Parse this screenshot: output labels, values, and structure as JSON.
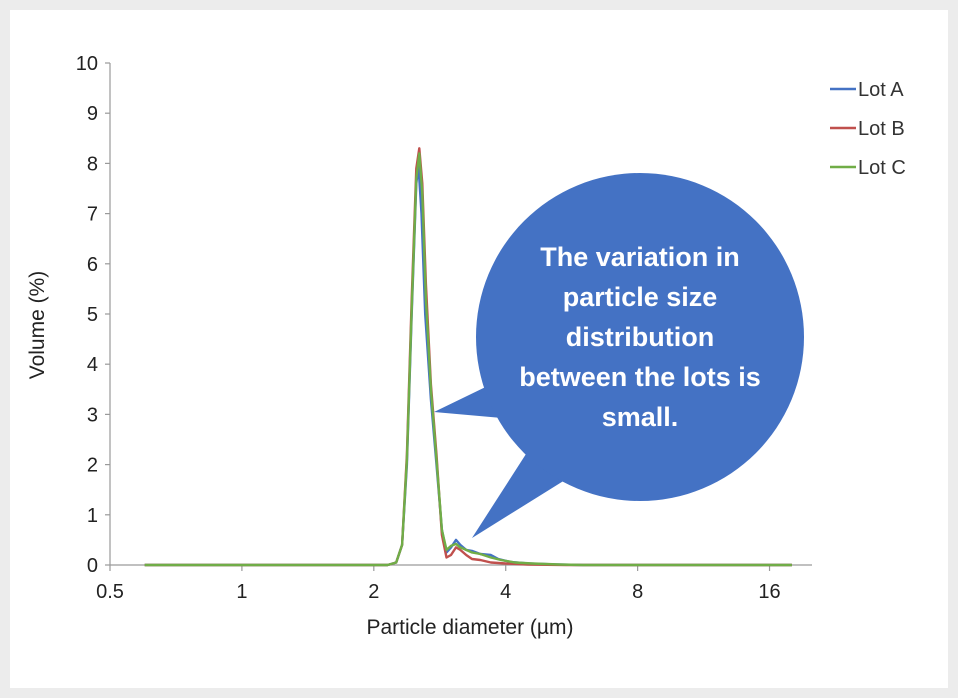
{
  "chart_data": {
    "type": "line",
    "xlabel": "Particle diameter (µm)",
    "ylabel": "Volume (%)",
    "x_scale": "log2",
    "xlim": [
      0.5,
      20
    ],
    "ylim": [
      0,
      10
    ],
    "x_ticks": [
      "0.5",
      "1",
      "2",
      "4",
      "8",
      "16"
    ],
    "y_ticks": [
      "0",
      "1",
      "2",
      "3",
      "4",
      "5",
      "6",
      "7",
      "8",
      "9",
      "10"
    ],
    "grid": false,
    "legend_position": "top-right",
    "series": [
      {
        "name": "Lot A",
        "color": "#4472c4",
        "points": [
          [
            0.6,
            0
          ],
          [
            2.15,
            0
          ],
          [
            2.25,
            0.05
          ],
          [
            2.32,
            0.4
          ],
          [
            2.38,
            2.0
          ],
          [
            2.44,
            5.0
          ],
          [
            2.5,
            7.6
          ],
          [
            2.53,
            7.95
          ],
          [
            2.57,
            7.0
          ],
          [
            2.62,
            5.0
          ],
          [
            2.7,
            3.3
          ],
          [
            2.78,
            2.0
          ],
          [
            2.86,
            0.7
          ],
          [
            2.93,
            0.25
          ],
          [
            3.0,
            0.35
          ],
          [
            3.08,
            0.5
          ],
          [
            3.15,
            0.4
          ],
          [
            3.25,
            0.3
          ],
          [
            3.35,
            0.28
          ],
          [
            3.5,
            0.22
          ],
          [
            3.7,
            0.2
          ],
          [
            3.85,
            0.12
          ],
          [
            4.1,
            0.06
          ],
          [
            4.5,
            0.03
          ],
          [
            5.2,
            0.01
          ],
          [
            6,
            0
          ],
          [
            18,
            0
          ]
        ]
      },
      {
        "name": "Lot B",
        "color": "#c0504d",
        "points": [
          [
            0.6,
            0
          ],
          [
            2.15,
            0
          ],
          [
            2.25,
            0.05
          ],
          [
            2.32,
            0.4
          ],
          [
            2.38,
            2.2
          ],
          [
            2.44,
            5.3
          ],
          [
            2.5,
            7.9
          ],
          [
            2.54,
            8.3
          ],
          [
            2.58,
            7.6
          ],
          [
            2.63,
            5.6
          ],
          [
            2.7,
            3.6
          ],
          [
            2.78,
            2.2
          ],
          [
            2.86,
            0.6
          ],
          [
            2.93,
            0.15
          ],
          [
            3.0,
            0.2
          ],
          [
            3.08,
            0.35
          ],
          [
            3.15,
            0.3
          ],
          [
            3.25,
            0.2
          ],
          [
            3.35,
            0.12
          ],
          [
            3.5,
            0.1
          ],
          [
            3.7,
            0.05
          ],
          [
            4.0,
            0.03
          ],
          [
            4.5,
            0.01
          ],
          [
            5.5,
            0
          ],
          [
            18,
            0
          ]
        ]
      },
      {
        "name": "Lot C",
        "color": "#70ad47",
        "points": [
          [
            0.6,
            0
          ],
          [
            2.15,
            0
          ],
          [
            2.25,
            0.05
          ],
          [
            2.32,
            0.4
          ],
          [
            2.38,
            2.1
          ],
          [
            2.44,
            5.1
          ],
          [
            2.5,
            7.7
          ],
          [
            2.54,
            8.2
          ],
          [
            2.58,
            7.4
          ],
          [
            2.63,
            5.3
          ],
          [
            2.7,
            3.5
          ],
          [
            2.78,
            2.1
          ],
          [
            2.86,
            0.7
          ],
          [
            2.93,
            0.3
          ],
          [
            3.0,
            0.38
          ],
          [
            3.08,
            0.42
          ],
          [
            3.15,
            0.35
          ],
          [
            3.25,
            0.3
          ],
          [
            3.35,
            0.25
          ],
          [
            3.5,
            0.22
          ],
          [
            3.7,
            0.15
          ],
          [
            3.9,
            0.1
          ],
          [
            4.2,
            0.05
          ],
          [
            4.6,
            0.03
          ],
          [
            5.3,
            0.01
          ],
          [
            6,
            0
          ],
          [
            18,
            0
          ]
        ]
      }
    ],
    "annotation": {
      "text_lines": [
        "The variation in",
        "particle size",
        "distribution",
        "between the lots is",
        "small."
      ],
      "color": "#4472c4"
    }
  }
}
